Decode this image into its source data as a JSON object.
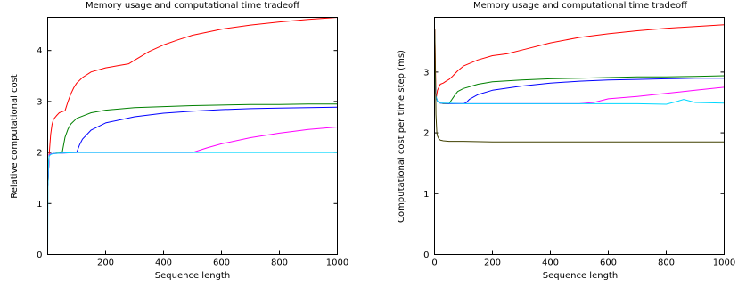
{
  "chart_data": [
    {
      "type": "line",
      "title": "Memory usage and computational time tradeoff",
      "xlabel": "Sequence length",
      "ylabel": "Relative computational cost",
      "xlim": [
        0,
        1000
      ],
      "ylim": [
        0,
        4.65
      ],
      "xticks": [
        200,
        400,
        600,
        800,
        1000
      ],
      "yticks": [
        0,
        1,
        2,
        3,
        4
      ],
      "grid": false,
      "series": [
        {
          "color": "#ff0000",
          "x": [
            1,
            5,
            10,
            15,
            20,
            30,
            40,
            50,
            60,
            70,
            80,
            90,
            100,
            120,
            150,
            200,
            250,
            280,
            300,
            350,
            400,
            450,
            500,
            600,
            700,
            800,
            900,
            1000
          ],
          "y": [
            1.35,
            1.95,
            2.35,
            2.55,
            2.65,
            2.72,
            2.78,
            2.8,
            2.82,
            3.0,
            3.15,
            3.27,
            3.36,
            3.47,
            3.58,
            3.66,
            3.71,
            3.74,
            3.81,
            3.98,
            4.11,
            4.21,
            4.3,
            4.42,
            4.5,
            4.56,
            4.61,
            4.65
          ]
        },
        {
          "color": "#008000",
          "x": [
            1,
            5,
            10,
            20,
            30,
            40,
            50,
            60,
            70,
            80,
            100,
            150,
            200,
            300,
            400,
            500,
            600,
            700,
            800,
            900,
            1000
          ],
          "y": [
            1.35,
            1.95,
            1.97,
            1.98,
            1.99,
            1.99,
            2.0,
            2.3,
            2.46,
            2.56,
            2.67,
            2.78,
            2.83,
            2.88,
            2.9,
            2.92,
            2.93,
            2.94,
            2.94,
            2.95,
            2.95
          ]
        },
        {
          "color": "#0000ff",
          "x": [
            1,
            5,
            10,
            20,
            50,
            80,
            100,
            110,
            120,
            150,
            200,
            300,
            400,
            500,
            600,
            700,
            800,
            900,
            1000
          ],
          "y": [
            1.35,
            1.95,
            1.97,
            1.98,
            1.99,
            2.0,
            2.0,
            2.15,
            2.26,
            2.44,
            2.58,
            2.7,
            2.77,
            2.81,
            2.84,
            2.86,
            2.87,
            2.88,
            2.89
          ]
        },
        {
          "color": "#ff00ff",
          "x": [
            1,
            5,
            10,
            20,
            100,
            200,
            300,
            400,
            500,
            550,
            600,
            700,
            800,
            900,
            1000
          ],
          "y": [
            1.35,
            1.95,
            1.97,
            1.98,
            2.0,
            2.0,
            2.0,
            2.0,
            2.0,
            2.09,
            2.17,
            2.29,
            2.38,
            2.45,
            2.5
          ]
        },
        {
          "color": "#00d8ff",
          "x": [
            0,
            1,
            3,
            5,
            10,
            20,
            50,
            100,
            200,
            400,
            600,
            800,
            1000
          ],
          "y": [
            0.0,
            1.3,
            1.8,
            1.93,
            1.96,
            1.98,
            1.99,
            2.0,
            2.0,
            2.0,
            2.0,
            2.0,
            2.0
          ]
        }
      ]
    },
    {
      "type": "line",
      "title": "Memory usage and computational time tradeoff",
      "xlabel": "Sequence length",
      "ylabel": "Computational cost per time step (ms)",
      "xlim": [
        0,
        1000
      ],
      "ylim": [
        0,
        3.9
      ],
      "xticks": [
        0,
        200,
        400,
        600,
        800,
        1000
      ],
      "yticks": [
        0,
        1,
        2,
        3
      ],
      "grid": false,
      "series": [
        {
          "color": "#ff0000",
          "x": [
            1,
            5,
            10,
            20,
            30,
            40,
            50,
            60,
            80,
            100,
            150,
            200,
            250,
            300,
            400,
            500,
            600,
            700,
            800,
            900,
            1000
          ],
          "y": [
            3.7,
            2.55,
            2.7,
            2.8,
            2.82,
            2.85,
            2.88,
            2.92,
            3.02,
            3.1,
            3.2,
            3.27,
            3.3,
            3.36,
            3.48,
            3.57,
            3.63,
            3.68,
            3.72,
            3.75,
            3.78
          ]
        },
        {
          "color": "#008000",
          "x": [
            1,
            5,
            10,
            20,
            30,
            50,
            60,
            70,
            80,
            100,
            150,
            200,
            300,
            400,
            500,
            600,
            700,
            800,
            900,
            1000
          ],
          "y": [
            3.0,
            2.6,
            2.52,
            2.49,
            2.48,
            2.48,
            2.55,
            2.62,
            2.68,
            2.73,
            2.8,
            2.84,
            2.87,
            2.89,
            2.9,
            2.91,
            2.92,
            2.92,
            2.93,
            2.94
          ]
        },
        {
          "color": "#0000ff",
          "x": [
            1,
            5,
            10,
            20,
            50,
            100,
            110,
            120,
            150,
            200,
            300,
            400,
            500,
            600,
            700,
            800,
            900,
            1000
          ],
          "y": [
            3.0,
            2.6,
            2.52,
            2.49,
            2.48,
            2.48,
            2.5,
            2.55,
            2.63,
            2.7,
            2.77,
            2.82,
            2.85,
            2.87,
            2.88,
            2.89,
            2.9,
            2.9
          ]
        },
        {
          "color": "#ff00ff",
          "x": [
            1,
            5,
            10,
            20,
            100,
            300,
            500,
            550,
            600,
            700,
            800,
            900,
            1000
          ],
          "y": [
            3.0,
            2.6,
            2.52,
            2.49,
            2.48,
            2.48,
            2.48,
            2.5,
            2.56,
            2.6,
            2.65,
            2.7,
            2.75
          ]
        },
        {
          "color": "#00d8ff",
          "x": [
            1,
            5,
            10,
            20,
            30,
            100,
            200,
            300,
            400,
            500,
            600,
            700,
            800,
            840,
            860,
            900,
            1000
          ],
          "y": [
            3.0,
            2.6,
            2.52,
            2.49,
            2.49,
            2.48,
            2.48,
            2.48,
            2.48,
            2.48,
            2.48,
            2.48,
            2.47,
            2.52,
            2.55,
            2.5,
            2.49
          ]
        },
        {
          "color": "#404000",
          "x": [
            1,
            3,
            5,
            8,
            10,
            15,
            20,
            30,
            50,
            100,
            200,
            400,
            600,
            800,
            1000
          ],
          "y": [
            3.7,
            3.0,
            2.3,
            2.0,
            1.95,
            1.9,
            1.88,
            1.87,
            1.86,
            1.86,
            1.85,
            1.85,
            1.85,
            1.85,
            1.85
          ]
        }
      ]
    }
  ]
}
